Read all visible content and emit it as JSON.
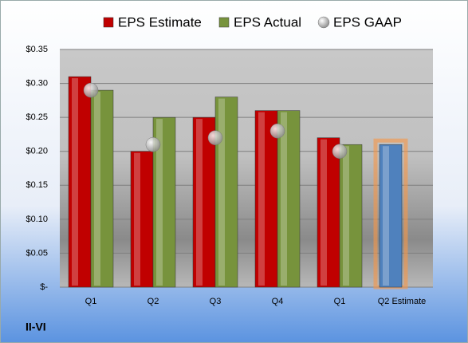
{
  "chart_data": {
    "type": "bar",
    "title": "II-VI",
    "categories": [
      "Q1",
      "Q2",
      "Q3",
      "Q4",
      "Q1",
      "Q2 Estimate"
    ],
    "series": [
      {
        "name": "EPS Estimate",
        "color": "#c00000",
        "values": [
          0.31,
          0.2,
          0.25,
          0.26,
          0.22,
          0.21
        ],
        "colors": [
          "#c00000",
          "#c00000",
          "#c00000",
          "#c00000",
          "#c00000",
          "#4f81bd"
        ]
      },
      {
        "name": "EPS Actual",
        "color": "#77933c",
        "values": [
          0.29,
          0.25,
          0.28,
          0.26,
          0.21,
          null
        ]
      },
      {
        "name": "EPS GAAP",
        "color": "#a6a6a6",
        "type": "scatter",
        "values": [
          0.29,
          0.21,
          0.22,
          0.23,
          0.2,
          null
        ]
      }
    ],
    "ylim": [
      0,
      0.35
    ],
    "yticks": [
      {
        "value": 0,
        "label": "$-"
      },
      {
        "value": 0.05,
        "label": "$0.05"
      },
      {
        "value": 0.1,
        "label": "$0.10"
      },
      {
        "value": 0.15,
        "label": "$0.15"
      },
      {
        "value": 0.2,
        "label": "$0.20"
      },
      {
        "value": 0.25,
        "label": "$0.25"
      },
      {
        "value": 0.3,
        "label": "$0.30"
      },
      {
        "value": 0.35,
        "label": "$0.35"
      }
    ],
    "grid": true,
    "legend": "top"
  }
}
